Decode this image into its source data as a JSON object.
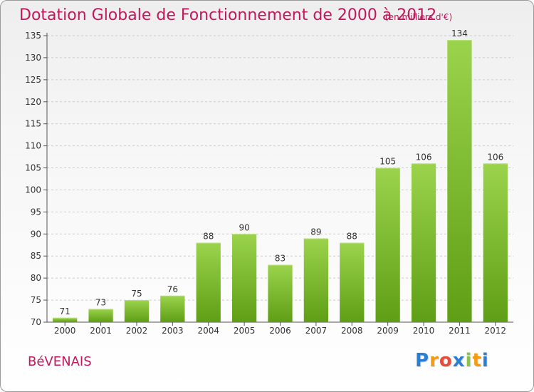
{
  "chart_data": {
    "type": "bar",
    "title": "Dotation Globale de Fonctionnement de 2000 à 2012",
    "subtitle": "(en milliers d'€)",
    "categories": [
      "2000",
      "2001",
      "2002",
      "2003",
      "2004",
      "2005",
      "2006",
      "2007",
      "2008",
      "2009",
      "2010",
      "2011",
      "2012"
    ],
    "values": [
      71,
      73,
      75,
      76,
      88,
      90,
      83,
      89,
      88,
      105,
      106,
      134,
      106
    ],
    "ylim": [
      70,
      135
    ],
    "yticks": [
      70,
      75,
      80,
      85,
      90,
      95,
      100,
      105,
      110,
      115,
      120,
      125,
      130,
      135
    ],
    "grid": true,
    "colors": {
      "bar_top": "#9bd34c",
      "bar_bottom": "#5f9e16",
      "grid": "#cccccc",
      "title": "#c2185b"
    }
  },
  "commune": "BéVENAIS",
  "logo": {
    "letters": [
      "P",
      "r",
      "o",
      "x",
      "i",
      "t",
      "i"
    ],
    "colors": [
      "#2a7fd4",
      "#f39c12",
      "#e74c3c",
      "#2a7fd4",
      "#8bc34a",
      "#f39c12",
      "#2a7fd4"
    ]
  }
}
